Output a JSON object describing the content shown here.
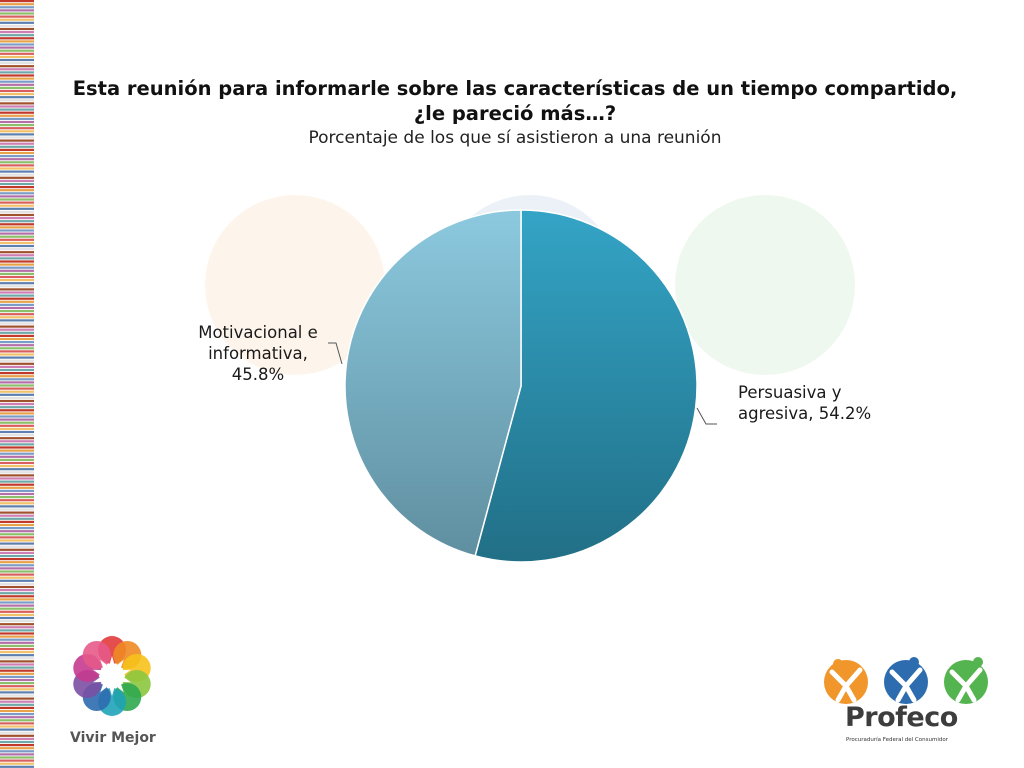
{
  "header": {
    "title": "Esta reunión para informarle sobre las características de un tiempo compartido, ¿le pareció más…?",
    "subtitle": "Porcentaje de los que sí asistieron a una reunión"
  },
  "chart_data": {
    "type": "pie",
    "title": "Esta reunión para informarle sobre las características de un tiempo compartido, ¿le pareció más…?",
    "subtitle": "Porcentaje de los que sí asistieron a una reunión",
    "slices": [
      {
        "name": "Persuasiva y agresiva",
        "value": 54.2,
        "label_lines": [
          "Persuasiva y",
          "agresiva, 54.2%"
        ],
        "color": "#2b8aa8"
      },
      {
        "name": "Motivacional e informativa",
        "value": 45.8,
        "label_lines": [
          "Motivacional e",
          "informativa,",
          "45.8%"
        ],
        "color": "#7ab4cc"
      }
    ]
  },
  "logos": {
    "left_text": "Vivir Mejor",
    "right_name": "Profeco",
    "right_sub": "Procuraduría Federal del Consumidor"
  },
  "colors": {
    "slice_1_top": "#34a4c6",
    "slice_1_bottom": "#216f86",
    "slice_2_top": "#8cc9df",
    "slice_2_bottom": "#5f8fa0"
  }
}
